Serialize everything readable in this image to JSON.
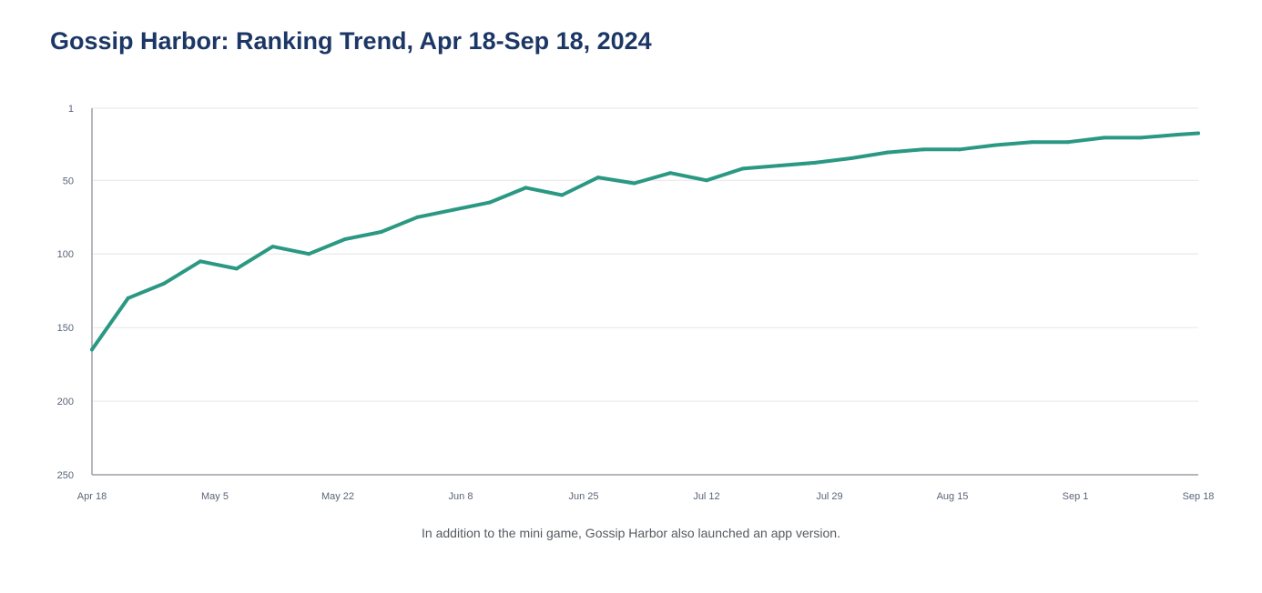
{
  "page": {
    "title": "Gossip Harbor: Ranking Trend, Apr 18-Sep 18, 2024",
    "caption": "In addition to the mini game, Gossip Harbor also launched an app version."
  },
  "colors": {
    "title": "#1c3766",
    "line": "#2a9883",
    "grid": "#e6e6e6",
    "axis": "#9a9fa5",
    "tick_label": "#5a6577"
  },
  "chart_data": {
    "type": "line",
    "title": "Gossip Harbor: Ranking Trend, Apr 18-Sep 18, 2024",
    "xlabel": "",
    "ylabel": "",
    "x_axis": {
      "start": "2024-04-18",
      "end": "2024-09-18",
      "tick_dates": [
        "2024-04-18",
        "2024-05-05",
        "2024-05-22",
        "2024-06-08",
        "2024-06-25",
        "2024-07-12",
        "2024-07-29",
        "2024-08-15",
        "2024-09-01",
        "2024-09-18"
      ],
      "tick_labels": [
        "Apr 18",
        "May 5",
        "May 22",
        "Jun 8",
        "Jun 25",
        "Jul 12",
        "Jul 29",
        "Aug 15",
        "Sep 1",
        "Sep 18"
      ]
    },
    "y_axis": {
      "reversed": true,
      "ylim": [
        1,
        250
      ],
      "ticks": [
        1,
        50,
        100,
        150,
        200,
        250
      ],
      "tick_labels": [
        "1",
        "50",
        "100",
        "150",
        "200",
        "250"
      ]
    },
    "grid": true,
    "legend": "none",
    "series": [
      {
        "points": [
          {
            "x": "2024-04-18",
            "y": 165
          },
          {
            "x": "2024-04-23",
            "y": 130
          },
          {
            "x": "2024-04-28",
            "y": 120
          },
          {
            "x": "2024-05-03",
            "y": 105
          },
          {
            "x": "2024-05-08",
            "y": 110
          },
          {
            "x": "2024-05-13",
            "y": 95
          },
          {
            "x": "2024-05-18",
            "y": 100
          },
          {
            "x": "2024-05-23",
            "y": 90
          },
          {
            "x": "2024-05-28",
            "y": 85
          },
          {
            "x": "2024-06-02",
            "y": 75
          },
          {
            "x": "2024-06-07",
            "y": 70
          },
          {
            "x": "2024-06-12",
            "y": 65
          },
          {
            "x": "2024-06-17",
            "y": 55
          },
          {
            "x": "2024-06-22",
            "y": 60
          },
          {
            "x": "2024-06-27",
            "y": 48
          },
          {
            "x": "2024-07-02",
            "y": 52
          },
          {
            "x": "2024-07-07",
            "y": 45
          },
          {
            "x": "2024-07-12",
            "y": 50
          },
          {
            "x": "2024-07-17",
            "y": 42
          },
          {
            "x": "2024-07-22",
            "y": 40
          },
          {
            "x": "2024-07-27",
            "y": 38
          },
          {
            "x": "2024-08-01",
            "y": 35
          },
          {
            "x": "2024-08-06",
            "y": 31
          },
          {
            "x": "2024-08-11",
            "y": 29
          },
          {
            "x": "2024-08-16",
            "y": 29
          },
          {
            "x": "2024-08-21",
            "y": 26
          },
          {
            "x": "2024-08-26",
            "y": 24
          },
          {
            "x": "2024-08-31",
            "y": 24
          },
          {
            "x": "2024-09-05",
            "y": 21
          },
          {
            "x": "2024-09-10",
            "y": 21
          },
          {
            "x": "2024-09-15",
            "y": 19
          },
          {
            "x": "2024-09-18",
            "y": 18
          }
        ]
      }
    ]
  }
}
